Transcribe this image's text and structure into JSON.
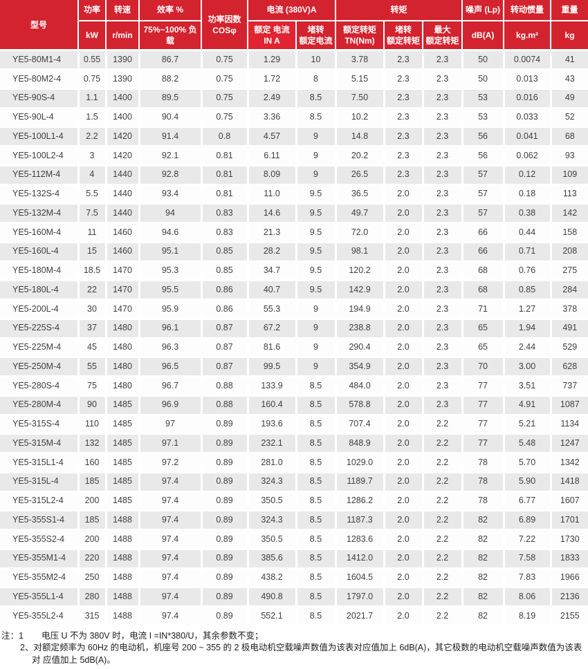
{
  "colors": {
    "header_red": "#d3232f",
    "header_red_highlight": "#e02431",
    "row_gray": "#e9e9e9",
    "row_white": "#fdfdfd",
    "bottom_rule_red": "#d0342c"
  },
  "table": {
    "header": {
      "model": "型号",
      "power_top": "功率",
      "power_unit": "kW",
      "speed_top": "转速",
      "speed_unit": "r/min",
      "efficiency_top": "效率 %",
      "efficiency_sub": "75%~100% 负载",
      "power_factor": "功率因数\nCOSφ",
      "current_group": "电流 (380V)A",
      "rated_current": "额定 电流\nIN A",
      "locked_rotor_current": "堵转\n额定电流",
      "torque_group": "转矩",
      "rated_torque": "额定转矩\nTN(Nm)",
      "locked_rotor_torque": "堵转\n额定转矩",
      "max_torque": "最大\n额定转矩",
      "noise_top": "噪声 (Lp)",
      "noise_unit": "dB(A)",
      "inertia_top": "转动惯量",
      "inertia_unit": "kg.m²",
      "weight_top": "重量",
      "weight_unit": "kg"
    },
    "column_keys": [
      "model",
      "power-kw",
      "speed-rpm",
      "efficiency",
      "cos-phi",
      "rated-current",
      "locked-rotor-current-ratio",
      "rated-torque",
      "locked-rotor-torque-ratio",
      "max-torque-ratio",
      "noise-db",
      "inertia",
      "weight-kg"
    ],
    "rows": [
      [
        "YE5-80M1-4",
        "0.55",
        "1390",
        "86.7",
        "0.75",
        "1.29",
        "10",
        "3.78",
        "2.3",
        "2.3",
        "50",
        "0.0074",
        "41"
      ],
      [
        "YE5-80M2-4",
        "0.75",
        "1390",
        "88.2",
        "0.75",
        "1.72",
        "8",
        "5.15",
        "2.3",
        "2.3",
        "50",
        "0.013",
        "43"
      ],
      [
        "YE5-90S-4",
        "1.1",
        "1400",
        "89.5",
        "0.75",
        "2.49",
        "8.5",
        "7.50",
        "2.3",
        "2.3",
        "53",
        "0.016",
        "49"
      ],
      [
        "YE5-90L-4",
        "1.5",
        "1400",
        "90.4",
        "0.75",
        "3.36",
        "8.5",
        "10.2",
        "2.3",
        "2.3",
        "53",
        "0.033",
        "52"
      ],
      [
        "YE5-100L1-4",
        "2.2",
        "1420",
        "91.4",
        "0.8",
        "4.57",
        "9",
        "14.8",
        "2.3",
        "2.3",
        "56",
        "0.041",
        "68"
      ],
      [
        "YE5-100L2-4",
        "3",
        "1420",
        "92.1",
        "0.81",
        "6.11",
        "9",
        "20.2",
        "2.3",
        "2.3",
        "56",
        "0.062",
        "93"
      ],
      [
        "YE5-112M-4",
        "4",
        "1440",
        "92.8",
        "0.81",
        "8.09",
        "9",
        "26.5",
        "2.3",
        "2.3",
        "57",
        "0.12",
        "109"
      ],
      [
        "YE5-132S-4",
        "5.5",
        "1440",
        "93.4",
        "0.81",
        "11.0",
        "9.5",
        "36.5",
        "2.0",
        "2.3",
        "57",
        "0.18",
        "113"
      ],
      [
        "YE5-132M-4",
        "7.5",
        "1440",
        "94",
        "0.83",
        "14.6",
        "9.5",
        "49.7",
        "2.0",
        "2.3",
        "57",
        "0.38",
        "142"
      ],
      [
        "YE5-160M-4",
        "11",
        "1460",
        "94.6",
        "0.83",
        "21.3",
        "9.5",
        "72.0",
        "2.0",
        "2.3",
        "66",
        "0.44",
        "158"
      ],
      [
        "YE5-160L-4",
        "15",
        "1460",
        "95.1",
        "0.85",
        "28.2",
        "9.5",
        "98.1",
        "2.0",
        "2.3",
        "66",
        "0.71",
        "208"
      ],
      [
        "YE5-180M-4",
        "18.5",
        "1470",
        "95.3",
        "0.85",
        "34.7",
        "9.5",
        "120.2",
        "2.0",
        "2.3",
        "68",
        "0.76",
        "275"
      ],
      [
        "YE5-180L-4",
        "22",
        "1470",
        "95.5",
        "0.86",
        "40.7",
        "9.5",
        "142.9",
        "2.0",
        "2.3",
        "68",
        "0.85",
        "284"
      ],
      [
        "YE5-200L-4",
        "30",
        "1470",
        "95.9",
        "0.86",
        "55.3",
        "9",
        "194.9",
        "2.0",
        "2.3",
        "71",
        "1.27",
        "378"
      ],
      [
        "YE5-225S-4",
        "37",
        "1480",
        "96.1",
        "0.87",
        "67.2",
        "9",
        "238.8",
        "2.0",
        "2.3",
        "65",
        "1.94",
        "491"
      ],
      [
        "YE5-225M-4",
        "45",
        "1480",
        "96.3",
        "0.87",
        "81.6",
        "9",
        "290.4",
        "2.0",
        "2.3",
        "65",
        "2.44",
        "529"
      ],
      [
        "YE5-250M-4",
        "55",
        "1480",
        "96.5",
        "0.87",
        "99.5",
        "9",
        "354.9",
        "2.0",
        "2.3",
        "70",
        "3.00",
        "628"
      ],
      [
        "YE5-280S-4",
        "75",
        "1480",
        "96.7",
        "0.88",
        "133.9",
        "8.5",
        "484.0",
        "2.0",
        "2.3",
        "77",
        "3.51",
        "737"
      ],
      [
        "YE5-280M-4",
        "90",
        "1485",
        "96.9",
        "0.88",
        "160.4",
        "8.5",
        "578.8",
        "2.0",
        "2.3",
        "77",
        "4.91",
        "1087"
      ],
      [
        "YE5-315S-4",
        "110",
        "1485",
        "97",
        "0.89",
        "193.6",
        "8.5",
        "707.4",
        "2.0",
        "2.2",
        "77",
        "5.21",
        "1134"
      ],
      [
        "YE5-315M-4",
        "132",
        "1485",
        "97.1",
        "0.89",
        "232.1",
        "8.5",
        "848.9",
        "2.0",
        "2.2",
        "77",
        "5.48",
        "1247"
      ],
      [
        "YE5-315L1-4",
        "160",
        "1485",
        "97.2",
        "0.89",
        "281.0",
        "8.5",
        "1029.0",
        "2.0",
        "2.2",
        "78",
        "5.70",
        "1342"
      ],
      [
        "YE5-315L-4",
        "185",
        "1485",
        "97.4",
        "0.89",
        "324.3",
        "8.5",
        "1189.7",
        "2.0",
        "2.2",
        "78",
        "5.90",
        "1418"
      ],
      [
        "YE5-315L2-4",
        "200",
        "1485",
        "97.4",
        "0.89",
        "350.5",
        "8.5",
        "1286.2",
        "2.0",
        "2.2",
        "78",
        "6.77",
        "1607"
      ],
      [
        "YE5-355S1-4",
        "185",
        "1488",
        "97.4",
        "0.89",
        "324.3",
        "8.5",
        "1187.3",
        "2.0",
        "2.2",
        "82",
        "6.89",
        "1701"
      ],
      [
        "YE5-355S2-4",
        "200",
        "1488",
        "97.4",
        "0.89",
        "350.5",
        "8.5",
        "1283.6",
        "2.0",
        "2.2",
        "82",
        "7.22",
        "1730"
      ],
      [
        "YE5-355M1-4",
        "220",
        "1488",
        "97.4",
        "0.89",
        "385.6",
        "8.5",
        "1412.0",
        "2.0",
        "2.2",
        "82",
        "7.58",
        "1833"
      ],
      [
        "YE5-355M2-4",
        "250",
        "1488",
        "97.4",
        "0.89",
        "438.2",
        "8.5",
        "1604.5",
        "2.0",
        "2.2",
        "82",
        "7.83",
        "1966"
      ],
      [
        "YE5-355L1-4",
        "280",
        "1488",
        "97.4",
        "0.89",
        "490.8",
        "8.5",
        "1797.0",
        "2.0",
        "2.2",
        "82",
        "8.06",
        "2136"
      ],
      [
        "YE5-355L2-4",
        "315",
        "1488",
        "97.4",
        "0.89",
        "552.1",
        "8.5",
        "2021.7",
        "2.0",
        "2.2",
        "82",
        "8.19",
        "2155"
      ]
    ]
  },
  "notes": {
    "prefix": "注：1",
    "note1": "电压 U 不为 380V 时，电流 I =IN*380/U，其余参数不变；",
    "note2": "2、对额定频率为 60Hz 的电动机，机座号 200 ~ 355 的 2 极电动机空载噪声数值为该表对应值加上 6dB(A)，其它极数的电动机空载噪声数值为该表对 应值加上 5dB(A)。"
  }
}
